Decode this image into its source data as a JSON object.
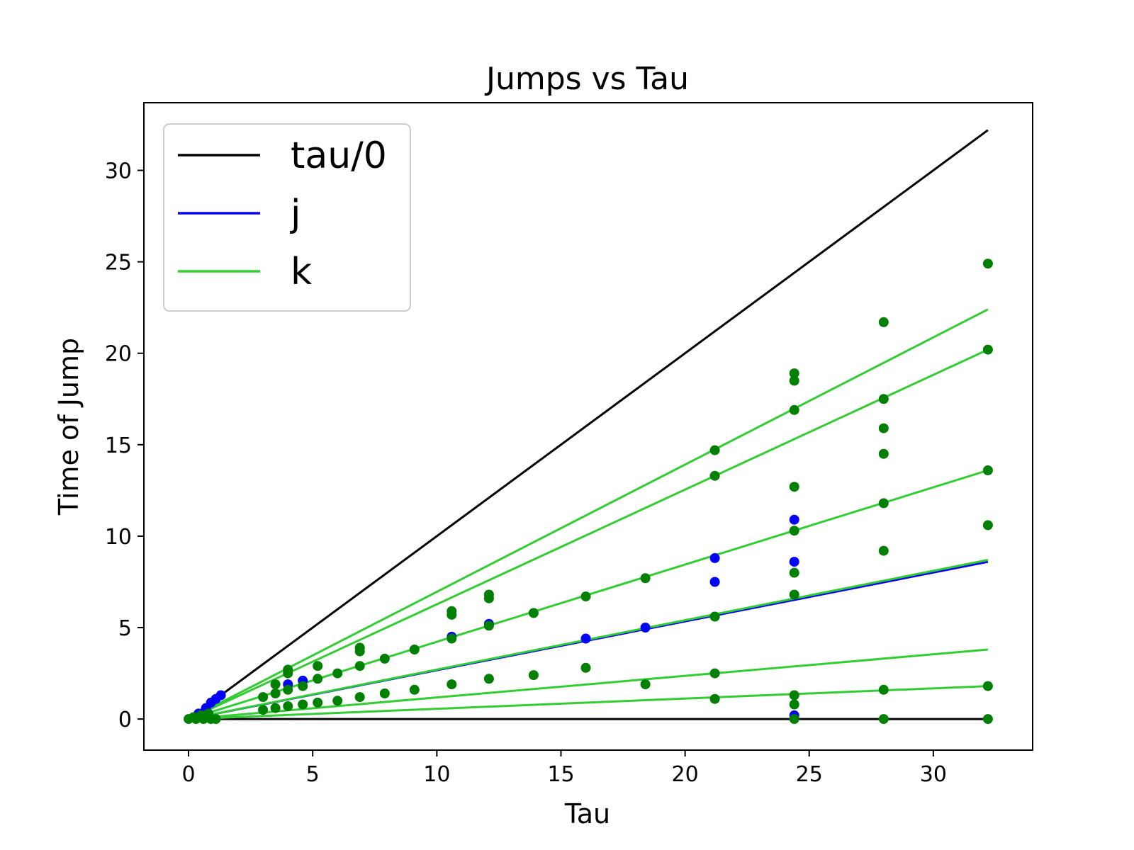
{
  "chart_data": {
    "type": "scatter",
    "title": "Jumps vs Tau",
    "xlabel": "Tau",
    "ylabel": "Time of Jump",
    "xlim": [
      -1.8,
      34.0
    ],
    "ylim": [
      -1.7,
      33.7
    ],
    "xticks": [
      0,
      5,
      10,
      15,
      20,
      25,
      30
    ],
    "yticks": [
      0,
      5,
      10,
      15,
      20,
      25,
      30
    ],
    "legend": {
      "placement": "upper-left",
      "entries": [
        {
          "label": "tau/0",
          "color": "#000000"
        },
        {
          "label": "j",
          "color": "#0000ff"
        },
        {
          "label": "k",
          "color": "#32cd32"
        }
      ]
    },
    "lines": [
      {
        "series": "tau/0",
        "color": "#000000",
        "x": [
          0,
          32.2
        ],
        "y": [
          0,
          32.2
        ]
      },
      {
        "series": "tau/0",
        "color": "#000000",
        "x": [
          0,
          32.2
        ],
        "y": [
          0,
          0
        ]
      },
      {
        "series": "j",
        "color": "#0000ff",
        "x": [
          0,
          32.2
        ],
        "y": [
          0,
          8.6
        ]
      },
      {
        "series": "k",
        "color": "#32cd32",
        "x": [
          0,
          32.2
        ],
        "y": [
          0,
          22.4
        ]
      },
      {
        "series": "k",
        "color": "#32cd32",
        "x": [
          0,
          32.2
        ],
        "y": [
          0,
          20.2
        ]
      },
      {
        "series": "k",
        "color": "#32cd32",
        "x": [
          0,
          32.2
        ],
        "y": [
          0,
          13.6
        ]
      },
      {
        "series": "k",
        "color": "#32cd32",
        "x": [
          0,
          32.2
        ],
        "y": [
          0,
          8.7
        ]
      },
      {
        "series": "k",
        "color": "#32cd32",
        "x": [
          0,
          32.2
        ],
        "y": [
          0,
          3.8
        ]
      },
      {
        "series": "k",
        "color": "#32cd32",
        "x": [
          0,
          32.2
        ],
        "y": [
          0,
          1.8
        ]
      }
    ],
    "scatter": [
      {
        "series": "j",
        "color": "#0000ff",
        "points": [
          [
            0.4,
            0.3
          ],
          [
            0.7,
            0.6
          ],
          [
            0.9,
            0.9
          ],
          [
            1.1,
            1.1
          ],
          [
            1.3,
            1.3
          ],
          [
            4.0,
            1.9
          ],
          [
            4.6,
            2.1
          ],
          [
            10.6,
            4.5
          ],
          [
            12.1,
            5.2
          ],
          [
            16.0,
            4.4
          ],
          [
            18.4,
            5.0
          ],
          [
            21.2,
            8.8
          ],
          [
            21.2,
            7.5
          ],
          [
            24.4,
            10.9
          ],
          [
            24.4,
            8.6
          ],
          [
            24.4,
            0.2
          ]
        ]
      },
      {
        "series": "k",
        "color": "#008000",
        "points": [
          [
            0,
            0
          ],
          [
            0.3,
            0
          ],
          [
            0.6,
            0
          ],
          [
            0.9,
            0
          ],
          [
            1.1,
            0
          ],
          [
            0.2,
            0.1
          ],
          [
            0.5,
            0.2
          ],
          [
            0.8,
            0.3
          ],
          [
            3.0,
            1.2
          ],
          [
            3.0,
            0.5
          ],
          [
            3.5,
            1.9
          ],
          [
            3.5,
            1.4
          ],
          [
            3.5,
            0.6
          ],
          [
            4.0,
            2.7
          ],
          [
            4.0,
            2.5
          ],
          [
            4.0,
            1.6
          ],
          [
            4.0,
            0.7
          ],
          [
            4.6,
            1.8
          ],
          [
            4.6,
            0.8
          ],
          [
            5.2,
            2.9
          ],
          [
            5.2,
            2.2
          ],
          [
            5.2,
            0.9
          ],
          [
            6.0,
            2.5
          ],
          [
            6.0,
            1.0
          ],
          [
            6.9,
            3.9
          ],
          [
            6.9,
            3.7
          ],
          [
            6.9,
            2.9
          ],
          [
            6.9,
            1.2
          ],
          [
            7.9,
            3.3
          ],
          [
            7.9,
            1.4
          ],
          [
            9.1,
            3.8
          ],
          [
            9.1,
            1.6
          ],
          [
            10.6,
            5.9
          ],
          [
            10.6,
            5.7
          ],
          [
            10.6,
            4.4
          ],
          [
            10.6,
            1.9
          ],
          [
            12.1,
            6.8
          ],
          [
            12.1,
            6.6
          ],
          [
            12.1,
            5.1
          ],
          [
            12.1,
            2.2
          ],
          [
            13.9,
            5.8
          ],
          [
            13.9,
            2.4
          ],
          [
            16.0,
            6.7
          ],
          [
            16.0,
            2.8
          ],
          [
            18.4,
            7.7
          ],
          [
            18.4,
            1.9
          ],
          [
            21.2,
            14.7
          ],
          [
            21.2,
            13.3
          ],
          [
            21.2,
            5.6
          ],
          [
            21.2,
            2.5
          ],
          [
            21.2,
            1.1
          ],
          [
            24.4,
            18.9
          ],
          [
            24.4,
            18.5
          ],
          [
            24.4,
            16.9
          ],
          [
            24.4,
            12.7
          ],
          [
            24.4,
            10.3
          ],
          [
            24.4,
            8.0
          ],
          [
            24.4,
            6.8
          ],
          [
            24.4,
            1.3
          ],
          [
            24.4,
            0.8
          ],
          [
            24.4,
            0
          ],
          [
            28.0,
            21.7
          ],
          [
            28.0,
            17.5
          ],
          [
            28.0,
            15.9
          ],
          [
            28.0,
            14.5
          ],
          [
            28.0,
            11.8
          ],
          [
            28.0,
            9.2
          ],
          [
            28.0,
            1.6
          ],
          [
            28.0,
            0
          ],
          [
            32.2,
            24.9
          ],
          [
            32.2,
            20.2
          ],
          [
            32.2,
            13.6
          ],
          [
            32.2,
            10.6
          ],
          [
            32.2,
            1.8
          ],
          [
            32.2,
            0
          ]
        ]
      }
    ]
  }
}
